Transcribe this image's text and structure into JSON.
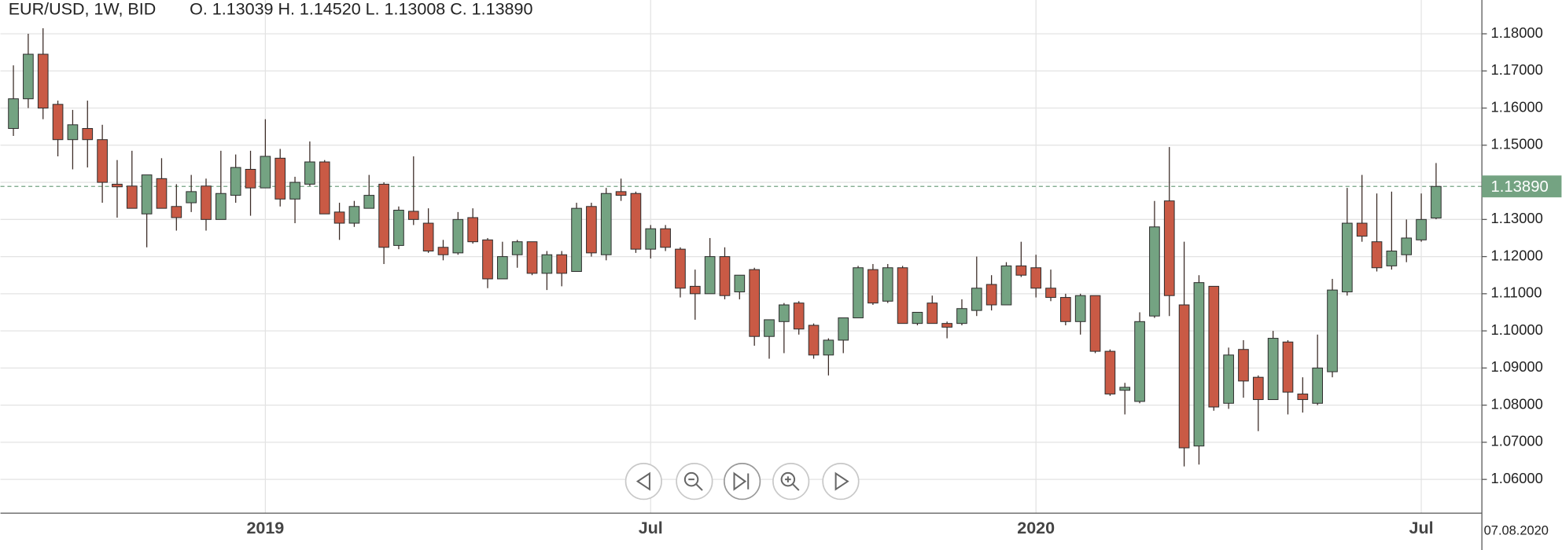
{
  "chart_data": {
    "type": "candlestick",
    "title": "EUR/USD, 1W, BID",
    "legend": "O. 1.13039 H. 1.14520 L. 1.13008 C. 1.13890",
    "date_label": "07.08.2020",
    "categories": [
      null,
      null,
      null,
      null,
      null,
      null,
      null,
      null,
      null,
      null,
      null,
      null,
      null,
      null,
      null,
      null,
      null,
      "2019",
      null,
      null,
      null,
      null,
      null,
      null,
      null,
      null,
      null,
      null,
      null,
      null,
      null,
      null,
      null,
      null,
      null,
      null,
      null,
      null,
      null,
      null,
      null,
      null,
      null,
      "Jul",
      null,
      null,
      null,
      null,
      null,
      null,
      null,
      null,
      null,
      null,
      null,
      null,
      null,
      null,
      null,
      null,
      null,
      null,
      null,
      null,
      null,
      null,
      null,
      null,
      null,
      "2020",
      null,
      null,
      null,
      null,
      null,
      null,
      null,
      null,
      null,
      null,
      null,
      null,
      null,
      null,
      null,
      null,
      null,
      null,
      null,
      null,
      null,
      null,
      null,
      null,
      null,
      "Jul",
      null
    ],
    "open": [
      1.1545,
      1.1625,
      1.1745,
      1.161,
      1.1515,
      1.1545,
      1.1515,
      1.1395,
      1.139,
      1.1315,
      1.141,
      1.1335,
      1.1345,
      1.139,
      1.13,
      1.1365,
      1.1435,
      1.1385,
      1.1465,
      1.1355,
      1.1395,
      1.1455,
      1.132,
      1.129,
      1.133,
      1.1395,
      1.123,
      1.1322,
      1.129,
      1.1225,
      1.121,
      1.1305,
      1.1245,
      1.114,
      1.1205,
      1.124,
      1.1155,
      1.1205,
      1.116,
      1.1335,
      1.1205,
      1.1375,
      1.137,
      1.122,
      1.1275,
      1.122,
      1.112,
      1.11,
      1.12,
      1.1105,
      1.1165,
      1.0985,
      1.1025,
      1.1075,
      1.1015,
      1.0935,
      1.0975,
      1.1035,
      1.1165,
      1.108,
      1.117,
      1.102,
      1.1075,
      1.102,
      1.102,
      1.1055,
      1.1125,
      1.107,
      1.1175,
      1.117,
      1.1115,
      1.109,
      1.1025,
      1.1095,
      1.0945,
      1.084,
      1.081,
      1.104,
      1.135,
      1.107,
      1.069,
      1.112,
      1.0805,
      1.095,
      1.0875,
      1.0815,
      1.097,
      1.083,
      1.0805,
      1.089,
      1.1105,
      1.129,
      1.124,
      1.1175,
      1.1205,
      1.1245,
      1.13039
    ],
    "high": [
      1.1715,
      1.18,
      1.1815,
      1.162,
      1.1595,
      1.162,
      1.1555,
      1.146,
      1.1485,
      1.142,
      1.1465,
      1.1395,
      1.142,
      1.141,
      1.1485,
      1.1475,
      1.1485,
      1.157,
      1.149,
      1.1415,
      1.151,
      1.146,
      1.1345,
      1.135,
      1.142,
      1.14,
      1.1335,
      1.147,
      1.133,
      1.1245,
      1.132,
      1.133,
      1.125,
      1.124,
      1.1245,
      1.124,
      1.1215,
      1.1215,
      1.1345,
      1.1345,
      1.1385,
      1.141,
      1.1375,
      1.1285,
      1.1285,
      1.1225,
      1.1165,
      1.125,
      1.1225,
      1.115,
      1.117,
      1.103,
      1.1075,
      1.108,
      1.102,
      1.098,
      1.103,
      1.1175,
      1.118,
      1.118,
      1.1175,
      1.105,
      1.1095,
      1.1025,
      1.1085,
      1.12,
      1.115,
      1.1185,
      1.124,
      1.1205,
      1.1165,
      1.11,
      1.11,
      1.1095,
      1.095,
      1.086,
      1.105,
      1.135,
      1.1495,
      1.124,
      1.115,
      1.112,
      1.0955,
      1.0975,
      1.088,
      1.1,
      1.0975,
      1.0875,
      1.099,
      1.114,
      1.1385,
      1.142,
      1.137,
      1.1375,
      1.13,
      1.137,
      1.1452
    ],
    "low": [
      1.1525,
      1.16,
      1.157,
      1.147,
      1.1435,
      1.144,
      1.1345,
      1.1305,
      1.133,
      1.1225,
      1.133,
      1.127,
      1.132,
      1.127,
      1.13,
      1.1345,
      1.131,
      1.1385,
      1.1335,
      1.129,
      1.139,
      1.1315,
      1.1245,
      1.128,
      1.133,
      1.118,
      1.122,
      1.1285,
      1.121,
      1.119,
      1.1205,
      1.1235,
      1.1115,
      1.114,
      1.117,
      1.115,
      1.111,
      1.112,
      1.116,
      1.12,
      1.119,
      1.135,
      1.121,
      1.1195,
      1.1215,
      1.109,
      1.103,
      1.11,
      1.1085,
      1.1085,
      1.096,
      1.0925,
      1.094,
      1.099,
      1.0925,
      1.088,
      1.094,
      1.1035,
      1.107,
      1.1075,
      1.102,
      1.1015,
      1.102,
      1.098,
      1.1015,
      1.104,
      1.1055,
      1.107,
      1.1145,
      1.109,
      1.108,
      1.1015,
      1.099,
      1.094,
      1.0825,
      1.0775,
      1.0805,
      1.1035,
      1.104,
      1.0635,
      1.064,
      1.0785,
      1.079,
      1.082,
      1.073,
      1.0815,
      1.0775,
      1.078,
      1.08,
      1.0875,
      1.1095,
      1.124,
      1.116,
      1.1165,
      1.1185,
      1.124,
      1.13008
    ],
    "close": [
      1.1625,
      1.1745,
      1.16,
      1.1515,
      1.1555,
      1.1515,
      1.14,
      1.1388,
      1.133,
      1.142,
      1.133,
      1.1305,
      1.1375,
      1.13,
      1.137,
      1.144,
      1.1385,
      1.147,
      1.1355,
      1.14,
      1.1455,
      1.1315,
      1.129,
      1.1335,
      1.1365,
      1.1225,
      1.1325,
      1.13,
      1.1215,
      1.1205,
      1.13,
      1.124,
      1.114,
      1.12,
      1.124,
      1.1155,
      1.1205,
      1.1155,
      1.133,
      1.121,
      1.137,
      1.1365,
      1.122,
      1.1275,
      1.1225,
      1.1115,
      1.11,
      1.12,
      1.1095,
      1.115,
      1.0985,
      1.103,
      1.107,
      1.1005,
      1.0935,
      1.0975,
      1.1035,
      1.117,
      1.1075,
      1.117,
      1.102,
      1.105,
      1.102,
      1.101,
      1.106,
      1.1115,
      1.107,
      1.1175,
      1.115,
      1.1115,
      1.109,
      1.1025,
      1.1095,
      1.0945,
      1.083,
      1.0848,
      1.1025,
      1.128,
      1.1095,
      1.0685,
      1.113,
      1.0795,
      1.0935,
      1.0865,
      1.0815,
      1.098,
      1.0835,
      1.0815,
      1.09,
      1.111,
      1.129,
      1.1255,
      1.117,
      1.1215,
      1.125,
      1.13,
      1.1389
    ],
    "up_color": "#74a382",
    "down_color": "#c95a45",
    "last_price": {
      "value": 1.1389,
      "label": "1.13890"
    },
    "ylim": [
      1.0509,
      1.1891
    ],
    "yticks": [
      {
        "value": 1.06,
        "label": "1.06000"
      },
      {
        "value": 1.07,
        "label": "1.07000"
      },
      {
        "value": 1.08,
        "label": "1.08000"
      },
      {
        "value": 1.09,
        "label": "1.09000"
      },
      {
        "value": 1.1,
        "label": "1.10000"
      },
      {
        "value": 1.11,
        "label": "1.11000"
      },
      {
        "value": 1.12,
        "label": "1.12000"
      },
      {
        "value": 1.13,
        "label": "1.13000"
      },
      {
        "value": 1.14,
        "label": "1.14000"
      },
      {
        "value": 1.15,
        "label": "1.15000"
      },
      {
        "value": 1.16,
        "label": "1.16000"
      },
      {
        "value": 1.17,
        "label": "1.17000"
      },
      {
        "value": 1.18,
        "label": "1.18000"
      }
    ],
    "grid": true
  }
}
